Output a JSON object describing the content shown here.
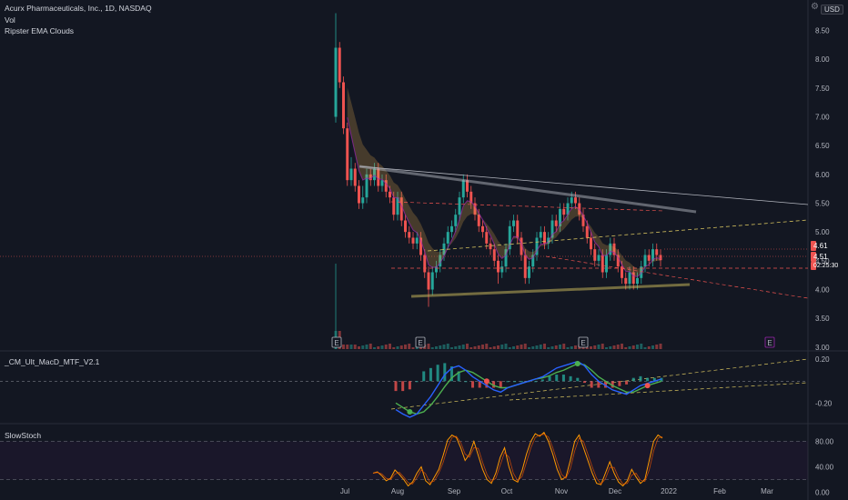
{
  "header": {
    "title": "Acurx Pharmaceuticals, Inc., 1D, NASDAQ",
    "vol_label": "Vol",
    "ema_label": "Ripster EMA Clouds",
    "currency": "USD"
  },
  "panels": {
    "macd_label": "_CM_Ult_MacD_MTF_V2.1",
    "stoch_label": "SlowStoch"
  },
  "price_tags": {
    "last": "4.61",
    "current": "4.51",
    "countdown": "02:25:30"
  },
  "earnings_marker": "E",
  "colors": {
    "background": "#131722",
    "up": "#26a69a",
    "down": "#ef5350",
    "stoch": "#ff9800",
    "macd_fast": "#2962ff",
    "macd_slow": "#4caf50",
    "dashed_line": "#d4c15e",
    "red_line": "#ef5350"
  },
  "chart_data": [
    {
      "type": "candlestick",
      "x_axis": {
        "labels": [
          "Jul",
          "Aug",
          "Sep",
          "Oct",
          "Nov",
          "Dec",
          "2022",
          "Feb",
          "Mar"
        ]
      },
      "y_axis": {
        "ticks": [
          8.5,
          8.0,
          7.5,
          7.0,
          6.5,
          6.0,
          5.5,
          5.0,
          4.5,
          4.0,
          3.5,
          3.0
        ],
        "tick_labels": [
          "8.50",
          "8.00",
          "7.50",
          "7.00",
          "6.50",
          "6.00",
          "5.50",
          "5.00",
          "4.50",
          "4.00",
          "3.50",
          "3.00"
        ],
        "range": [
          2.95,
          8.95
        ]
      },
      "series": [
        {
          "name": "Acurx Pharmaceuticals, Inc., 1D, NASDAQ",
          "close": [
            8.2,
            7.6,
            6.8,
            5.9,
            6.1,
            5.8,
            5.5,
            5.6,
            6.0,
            5.9,
            6.1,
            5.8,
            5.9,
            5.7,
            5.6,
            5.3,
            5.6,
            5.2,
            5.0,
            4.9,
            4.8,
            4.9,
            4.6,
            4.3,
            4.0,
            4.3,
            4.4,
            4.6,
            4.8,
            5.0,
            5.1,
            5.3,
            5.6,
            5.9,
            5.7,
            5.5,
            5.3,
            5.1,
            5.0,
            4.8,
            4.7,
            4.5,
            4.3,
            4.4,
            4.7,
            5.1,
            5.2,
            4.9,
            4.6,
            4.2,
            4.4,
            4.6,
            4.9,
            5.0,
            4.8,
            4.9,
            5.2,
            5.1,
            5.4,
            5.3,
            5.5,
            5.6,
            5.5,
            5.3,
            5.1,
            4.9,
            4.7,
            4.5,
            4.6,
            4.3,
            4.6,
            4.8,
            4.6,
            4.4,
            4.2,
            4.1,
            4.3,
            4.1,
            4.2,
            4.4,
            4.6,
            4.5,
            4.7,
            4.6,
            4.51
          ],
          "open": [
            7.0,
            8.2,
            7.6,
            6.8,
            5.9,
            6.1,
            5.8,
            5.5,
            5.6,
            6.0,
            5.9,
            6.1,
            5.8,
            5.9,
            5.7,
            5.6,
            5.3,
            5.6,
            5.2,
            5.0,
            4.9,
            4.8,
            4.9,
            4.6,
            4.3,
            4.0,
            4.3,
            4.4,
            4.6,
            4.8,
            5.0,
            5.1,
            5.3,
            5.6,
            5.9,
            5.7,
            5.5,
            5.3,
            5.1,
            5.0,
            4.8,
            4.7,
            4.5,
            4.3,
            4.4,
            4.7,
            5.1,
            5.2,
            4.9,
            4.6,
            4.2,
            4.4,
            4.6,
            4.9,
            5.0,
            4.8,
            4.9,
            5.2,
            5.1,
            5.4,
            5.3,
            5.5,
            5.6,
            5.5,
            5.3,
            5.1,
            4.9,
            4.7,
            4.5,
            4.6,
            4.3,
            4.6,
            4.8,
            4.6,
            4.4,
            4.2,
            4.1,
            4.3,
            4.1,
            4.2,
            4.4,
            4.6,
            4.5,
            4.7,
            4.6
          ],
          "high": [
            8.8,
            8.3,
            7.7,
            6.9,
            6.3,
            6.2,
            5.9,
            5.8,
            6.1,
            6.1,
            6.2,
            6.2,
            6.0,
            6.0,
            5.8,
            5.7,
            5.7,
            5.7,
            5.3,
            5.1,
            5.0,
            5.0,
            5.0,
            4.7,
            4.4,
            4.4,
            4.5,
            4.7,
            4.9,
            5.1,
            5.2,
            5.4,
            5.7,
            6.0,
            6.0,
            5.8,
            5.6,
            5.4,
            5.2,
            5.1,
            4.9,
            4.8,
            4.6,
            4.5,
            4.8,
            5.2,
            5.3,
            5.3,
            5.0,
            4.7,
            4.5,
            4.7,
            5.0,
            5.1,
            5.1,
            5.0,
            5.3,
            5.3,
            5.5,
            5.5,
            5.6,
            5.7,
            5.7,
            5.6,
            5.4,
            5.2,
            5.0,
            4.8,
            4.7,
            4.7,
            4.7,
            4.9,
            4.9,
            4.7,
            4.5,
            4.3,
            4.4,
            4.4,
            4.3,
            4.5,
            4.7,
            4.7,
            4.8,
            4.8,
            4.7
          ],
          "low": [
            6.9,
            7.5,
            6.7,
            5.8,
            5.8,
            5.7,
            5.4,
            5.4,
            5.5,
            5.8,
            5.8,
            5.7,
            5.7,
            5.6,
            5.5,
            5.2,
            5.2,
            5.1,
            4.9,
            4.8,
            4.7,
            4.7,
            4.5,
            4.2,
            3.7,
            3.9,
            4.2,
            4.3,
            4.5,
            4.7,
            4.9,
            5.0,
            5.2,
            5.5,
            5.6,
            5.4,
            5.2,
            5.0,
            4.9,
            4.7,
            4.6,
            4.4,
            4.1,
            4.2,
            4.3,
            4.6,
            5.0,
            4.8,
            4.5,
            4.1,
            4.1,
            4.3,
            4.5,
            4.8,
            4.7,
            4.7,
            4.8,
            5.0,
            5.0,
            5.2,
            5.2,
            5.4,
            5.4,
            5.2,
            5.0,
            4.8,
            4.6,
            4.4,
            4.4,
            4.2,
            4.2,
            4.5,
            4.5,
            4.3,
            4.1,
            4.0,
            4.0,
            4.0,
            4.0,
            4.1,
            4.3,
            4.4,
            4.4,
            4.5,
            4.4
          ]
        }
      ]
    },
    {
      "type": "line",
      "panel": "_CM_Ult_MacD_MTF_V2.1",
      "y_axis": {
        "tick_labels": [
          "0.20",
          "-0.20"
        ],
        "range": [
          -0.38,
          0.26
        ]
      },
      "series": [
        {
          "values": [
            -0.26,
            -0.3,
            -0.33,
            -0.3,
            -0.22,
            -0.14,
            -0.04,
            0.06,
            0.12,
            0.14,
            0.1,
            0.04,
            0.0,
            -0.04,
            -0.08,
            -0.1,
            -0.06,
            -0.04,
            -0.02,
            0.0,
            0.02,
            0.04,
            0.08,
            0.12,
            0.14,
            0.16,
            0.18,
            0.14,
            0.06,
            0.0,
            -0.04,
            -0.08,
            -0.1,
            -0.12,
            -0.08,
            -0.04,
            -0.02,
            0.0,
            0.02
          ]
        },
        {
          "values": [
            -0.2,
            -0.24,
            -0.28,
            -0.3,
            -0.28,
            -0.22,
            -0.14,
            -0.05,
            0.03,
            0.08,
            0.1,
            0.08,
            0.04,
            0.0,
            -0.04,
            -0.06,
            -0.06,
            -0.04,
            -0.02,
            0.0,
            0.02,
            0.03,
            0.05,
            0.08,
            0.1,
            0.13,
            0.16,
            0.15,
            0.1,
            0.04,
            0.0,
            -0.04,
            -0.07,
            -0.1,
            -0.1,
            -0.07,
            -0.04,
            -0.02,
            0.0
          ]
        }
      ]
    },
    {
      "type": "line",
      "panel": "SlowStoch",
      "y_axis": {
        "tick_labels": [
          "80.00",
          "40.00",
          "0.00"
        ],
        "range": [
          -5,
          105
        ]
      },
      "series": [
        {
          "values": [
            30,
            32,
            26,
            18,
            22,
            35,
            28,
            20,
            10,
            16,
            30,
            40,
            18,
            12,
            24,
            36,
            58,
            82,
            90,
            86,
            70,
            50,
            60,
            80,
            58,
            36,
            20,
            14,
            30,
            55,
            70,
            40,
            20,
            16,
            34,
            60,
            80,
            92,
            88,
            94,
            80,
            60,
            36,
            20,
            24,
            50,
            80,
            90,
            70,
            50,
            30,
            14,
            12,
            30,
            48,
            30,
            16,
            10,
            18,
            36,
            24,
            14,
            20,
            50,
            80,
            90,
            85
          ]
        }
      ]
    }
  ]
}
